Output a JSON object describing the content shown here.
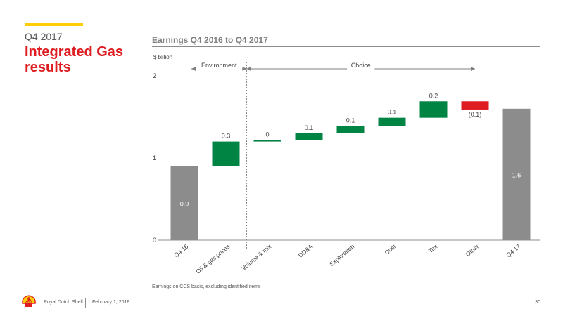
{
  "header": {
    "quarter": "Q4 2017",
    "title": "Integrated Gas results"
  },
  "footnote": "Earnings on CCS basis, excluding identified items",
  "footer": {
    "company": "Royal Dutch Shell",
    "date": "February 1, 2018",
    "page_number": "30"
  },
  "colors": {
    "accent": "#FBCE07",
    "title": "#DD1D21",
    "total_bar": "#8C8C8C",
    "increase_bar": "#008443",
    "decrease_bar": "#DD1D21"
  },
  "chart_data": {
    "type": "bar",
    "subtype": "waterfall",
    "title": "Earnings Q4 2016 to Q4 2017",
    "ylabel": "$ billion",
    "ylim": [
      0,
      2
    ],
    "yticks": [
      "0",
      "1",
      "2"
    ],
    "categories": [
      "Q4 16",
      "Oil & gas prices",
      "Volume & mix",
      "DD&A",
      "Exploration",
      "Cost",
      "Tax",
      "Other",
      "Q4 17"
    ],
    "values": [
      0.9,
      0.3,
      0.02,
      0.08,
      0.09,
      0.1,
      0.2,
      -0.1,
      1.6
    ],
    "data_labels": [
      "0.9",
      "0.3",
      "0",
      "0.1",
      "0.1",
      "0.1",
      "0.2",
      "(0.1)",
      "1.6"
    ],
    "bar_kinds": [
      "total",
      "increase",
      "increase",
      "increase",
      "increase",
      "increase",
      "increase",
      "decrease",
      "total"
    ],
    "groups": [
      {
        "label": "Environment",
        "from": 0,
        "to": 1
      },
      {
        "label": "Choice",
        "from": 2,
        "to": 7
      }
    ],
    "grid": false,
    "legend": "none"
  }
}
